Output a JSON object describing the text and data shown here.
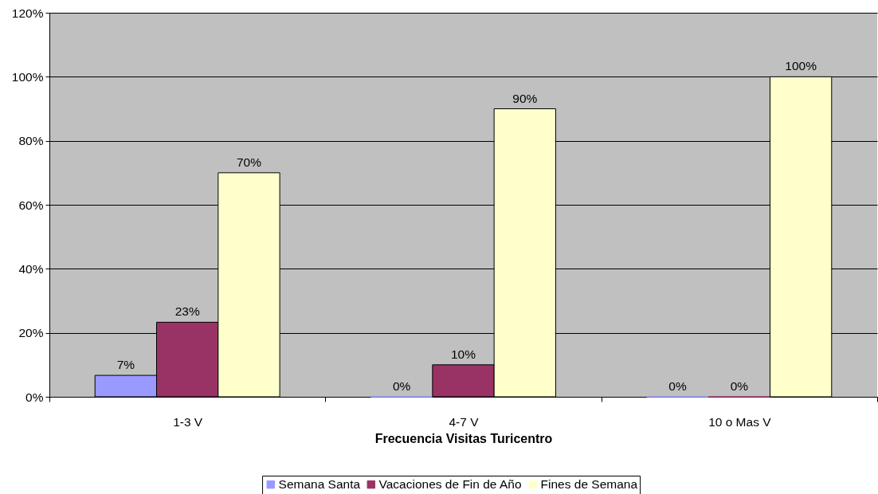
{
  "chart_data": {
    "type": "bar",
    "xlabel": "Frecuencia Visitas Turicentro",
    "categories": [
      "1-3 V",
      "4-7 V",
      "10 o Mas V"
    ],
    "series": [
      {
        "name": "Semana Santa",
        "color": "#9999ff",
        "values": [
          6.7,
          0,
          0
        ],
        "value_labels": [
          "7%",
          "0%",
          "0%"
        ]
      },
      {
        "name": "Vacaciones de Fin de Año",
        "color": "#993366",
        "values": [
          23.3,
          10,
          0
        ],
        "value_labels": [
          "23%",
          "10%",
          "0%"
        ]
      },
      {
        "name": "Fines de Semana",
        "color": "#ffffcc",
        "values": [
          70,
          90,
          100
        ],
        "value_labels": [
          "70%",
          "90%",
          "100%"
        ]
      }
    ],
    "ylim": [
      0,
      120
    ],
    "yticks": [
      {
        "value": 0,
        "label": "0%"
      },
      {
        "value": 20,
        "label": "20%"
      },
      {
        "value": 40,
        "label": "40%"
      },
      {
        "value": 60,
        "label": "60%"
      },
      {
        "value": 80,
        "label": "80%"
      },
      {
        "value": 100,
        "label": "100%"
      },
      {
        "value": 120,
        "label": "120%"
      }
    ],
    "grid": "y",
    "legend": "bottom"
  }
}
